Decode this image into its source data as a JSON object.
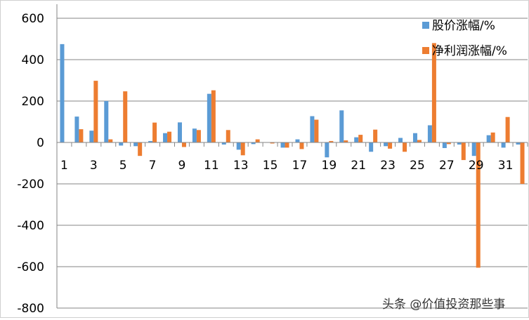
{
  "chart_data": {
    "type": "bar",
    "title": "",
    "xlabel": "",
    "ylabel": "",
    "ylim": [
      -800,
      600
    ],
    "yticks": [
      -800,
      -600,
      -400,
      -200,
      0,
      200,
      400,
      600
    ],
    "grid": true,
    "legend_position": "top-right",
    "categories": [
      1,
      2,
      3,
      4,
      5,
      6,
      7,
      8,
      9,
      10,
      11,
      12,
      13,
      14,
      15,
      16,
      17,
      18,
      19,
      20,
      21,
      22,
      23,
      24,
      25,
      26,
      27,
      28,
      29,
      30,
      31,
      32
    ],
    "tick_labels": [
      "1",
      "3",
      "5",
      "7",
      "9",
      "11",
      "13",
      "15",
      "17",
      "19",
      "21",
      "23",
      "25",
      "27",
      "29",
      "31"
    ],
    "series": [
      {
        "name": "股价涨幅/%",
        "color": "#5b9bd5",
        "values": [
          475,
          125,
          57,
          200,
          -15,
          -18,
          7,
          45,
          97,
          67,
          235,
          -10,
          -35,
          -8,
          0,
          -25,
          15,
          127,
          -72,
          155,
          25,
          -45,
          -18,
          22,
          45,
          83,
          -27,
          -10,
          -65,
          35,
          -25,
          -10
        ]
      },
      {
        "name": "净利润涨幅/%",
        "color": "#ed7d31",
        "values": [
          0,
          64,
          298,
          15,
          247,
          -65,
          96,
          52,
          -22,
          60,
          252,
          60,
          -62,
          15,
          -5,
          -25,
          -32,
          110,
          7,
          10,
          37,
          62,
          -30,
          -45,
          12,
          480,
          -8,
          -85,
          -605,
          48,
          123,
          -200
        ]
      }
    ]
  },
  "watermark": "头条 @价值投资那些事"
}
